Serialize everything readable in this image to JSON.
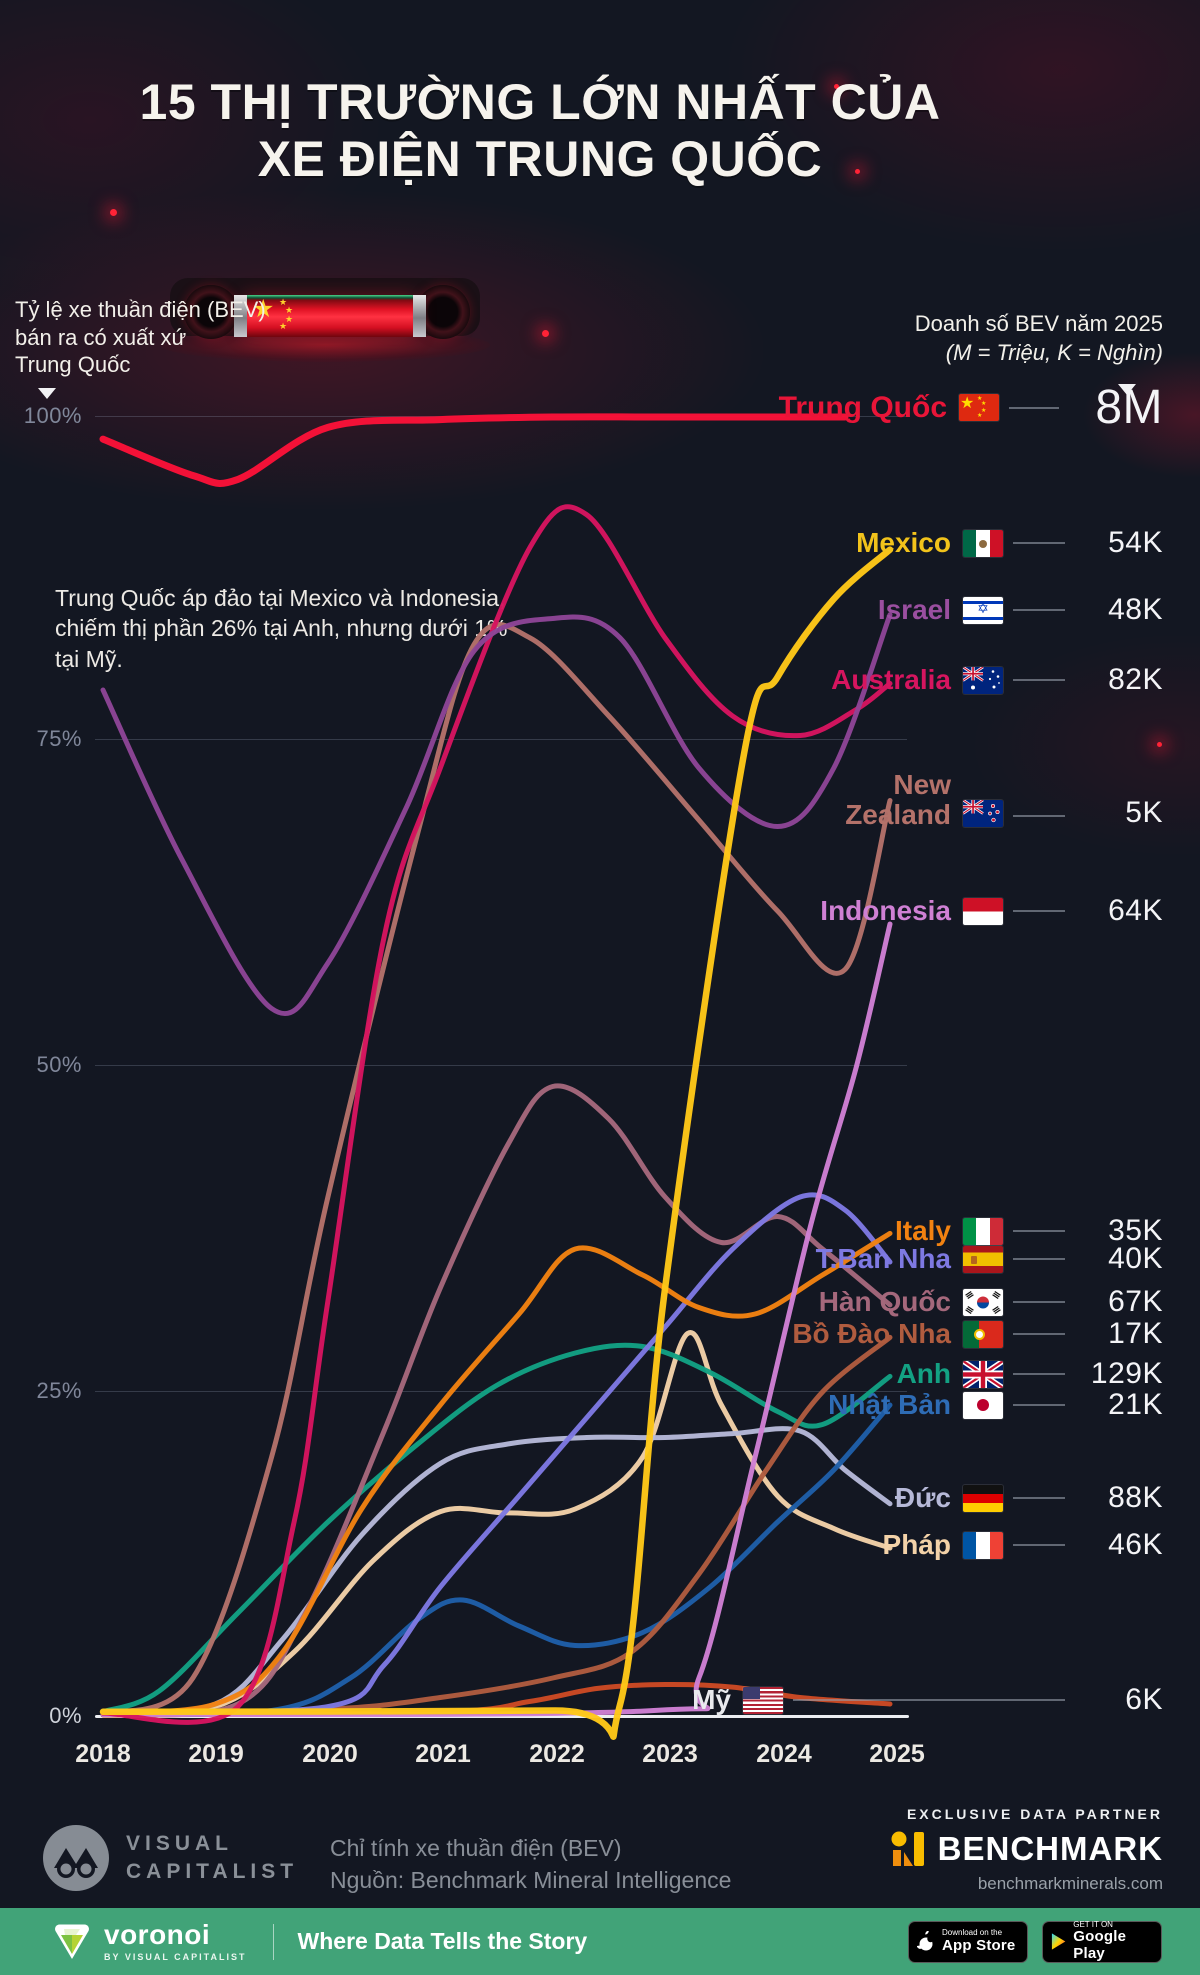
{
  "title": {
    "line1": "15 THỊ TRƯỜNG LỚN NHẤT CỦA",
    "line2": "XE ĐIỆN TRUNG QUỐC"
  },
  "subtitle_left": {
    "line1": "Tỷ lệ xe thuần điện (BEV)",
    "line2": "bán ra có xuất xứ",
    "line3": "Trung Quốc"
  },
  "subtitle_right": {
    "line1": "Doanh số BEV năm 2025",
    "line2": "(M = Triệu, K = Nghìn)"
  },
  "annotation": "Trung Quốc áp đảo tại Mexico và Indonesia, chiếm thị phần 26% tại Anh, nhưng dưới 1% tại Mỹ.",
  "chart_data": {
    "type": "line",
    "x_ticks": [
      "2018",
      "2019",
      "2020",
      "2021",
      "2022",
      "2023",
      "2024",
      "2025"
    ],
    "y_ticks": [
      "100%",
      "75%",
      "50%",
      "25%",
      "0%"
    ],
    "x_range": [
      2018,
      2025
    ],
    "y_range_percent": [
      0,
      100
    ],
    "grid": "horizontal-only",
    "legend_position": "right",
    "series": [
      {
        "label": "Trung Quốc",
        "flag": "china",
        "value_2025": "8M",
        "label_color": "#e81538",
        "line_color": "#fa1238",
        "width": 7,
        "points": [
          [
            2018,
            98.3
          ],
          [
            2018.8,
            95.5
          ],
          [
            2019.2,
            95.2
          ],
          [
            2020,
            99.2
          ],
          [
            2021,
            99.8
          ],
          [
            2022,
            100
          ],
          [
            2023,
            100
          ],
          [
            2024.6,
            100
          ]
        ]
      },
      {
        "label": "Mexico",
        "flag": "mexico",
        "value_2025": "54K",
        "label_color": "#f2c31b",
        "line_color": "#ffc818",
        "width": 6.5,
        "points": [
          [
            2018,
            0.4
          ],
          [
            2022,
            0.5
          ],
          [
            2022.6,
            1
          ],
          [
            2023,
            33
          ],
          [
            2023.7,
            74
          ],
          [
            2024,
            80
          ],
          [
            2024.5,
            86
          ],
          [
            2025,
            89.8
          ]
        ]
      },
      {
        "label": "Israel",
        "flag": "israel",
        "value_2025": "48K",
        "label_color": "#9a4fa0",
        "line_color": "#8d4596",
        "width": 5,
        "points": [
          [
            2018,
            79
          ],
          [
            2018.7,
            66
          ],
          [
            2019.5,
            54.5
          ],
          [
            2020,
            58
          ],
          [
            2020.7,
            70
          ],
          [
            2021.3,
            82
          ],
          [
            2022,
            84.5
          ],
          [
            2022.6,
            83
          ],
          [
            2023.3,
            73
          ],
          [
            2024,
            68.5
          ],
          [
            2024.5,
            73
          ],
          [
            2025,
            84.8
          ]
        ]
      },
      {
        "label": "Australia",
        "flag": "australia",
        "value_2025": "82K",
        "label_color": "#d6155f",
        "line_color": "#d6155f",
        "width": 5,
        "points": [
          [
            2018,
            0.3
          ],
          [
            2019.2,
            0.8
          ],
          [
            2019.7,
            15
          ],
          [
            2020,
            32
          ],
          [
            2020.5,
            60
          ],
          [
            2021,
            73
          ],
          [
            2021.8,
            90
          ],
          [
            2022.3,
            92.5
          ],
          [
            2023,
            83
          ],
          [
            2023.6,
            77
          ],
          [
            2024.2,
            75.5
          ],
          [
            2024.7,
            77.5
          ],
          [
            2025,
            79.5
          ]
        ]
      },
      {
        "label": "New Zealand",
        "label_lines": [
          "New",
          "Zealand"
        ],
        "flag": "new_zealand",
        "value_2025": "5K",
        "label_color": "#b4726a",
        "line_color": "#b4726a",
        "width": 5,
        "points": [
          [
            2018,
            0.3
          ],
          [
            2018.8,
            3
          ],
          [
            2019.5,
            20
          ],
          [
            2020,
            40
          ],
          [
            2020.8,
            68
          ],
          [
            2021.3,
            82.5
          ],
          [
            2021.8,
            83
          ],
          [
            2022.5,
            77
          ],
          [
            2023.3,
            69
          ],
          [
            2024,
            62
          ],
          [
            2024.6,
            57.5
          ],
          [
            2025,
            70.5
          ]
        ]
      },
      {
        "label": "Indonesia",
        "flag": "indonesia",
        "value_2025": "64K",
        "label_color": "#cf80d4",
        "line_color": "#cf80d4",
        "width": 5,
        "points": [
          [
            2018,
            0.2
          ],
          [
            2022.9,
            0.5
          ],
          [
            2023.3,
            3
          ],
          [
            2023.8,
            20
          ],
          [
            2024.3,
            38
          ],
          [
            2024.7,
            50
          ],
          [
            2025,
            61
          ]
        ]
      },
      {
        "label": "Italy",
        "flag": "italy",
        "value_2025": "35K",
        "label_color": "#f28211",
        "line_color": "#f28211",
        "width": 5,
        "points": [
          [
            2018,
            0.3
          ],
          [
            2019,
            1
          ],
          [
            2019.6,
            5
          ],
          [
            2020.3,
            16
          ],
          [
            2021,
            24
          ],
          [
            2021.7,
            31
          ],
          [
            2022.2,
            36
          ],
          [
            2022.8,
            34
          ],
          [
            2023.3,
            31.5
          ],
          [
            2023.8,
            31
          ],
          [
            2024.4,
            34
          ],
          [
            2025,
            37.2
          ]
        ]
      },
      {
        "label": "T.Ban Nha",
        "flag": "spain",
        "value_2025": "40K",
        "label_color": "#7e79e2",
        "line_color": "#7e79e2",
        "width": 5,
        "points": [
          [
            2018,
            0.2
          ],
          [
            2020,
            0.8
          ],
          [
            2020.5,
            4
          ],
          [
            2021,
            10
          ],
          [
            2021.7,
            17
          ],
          [
            2022.4,
            24
          ],
          [
            2023,
            30
          ],
          [
            2023.6,
            36
          ],
          [
            2024.2,
            40
          ],
          [
            2024.6,
            39
          ],
          [
            2025,
            35
          ]
        ]
      },
      {
        "label": "Hàn Quốc",
        "flag": "korea",
        "value_2025": "67K",
        "label_color": "#a5687c",
        "line_color": "#a5687c",
        "width": 5,
        "points": [
          [
            2018,
            0.2
          ],
          [
            2019.2,
            1
          ],
          [
            2019.8,
            8
          ],
          [
            2020.5,
            22
          ],
          [
            2021,
            33
          ],
          [
            2021.6,
            44
          ],
          [
            2022,
            48.5
          ],
          [
            2022.5,
            46
          ],
          [
            2023,
            40
          ],
          [
            2023.5,
            36.5
          ],
          [
            2024,
            38.5
          ],
          [
            2024.4,
            36
          ],
          [
            2025,
            31.7
          ]
        ]
      },
      {
        "label": "Bồ Đào Nha",
        "flag": "portugal",
        "value_2025": "17K",
        "label_color": "#b05c3f",
        "line_color": "#b05c3f",
        "width": 5,
        "points": [
          [
            2018,
            0.2
          ],
          [
            2020,
            0.6
          ],
          [
            2021,
            1.5
          ],
          [
            2022,
            3
          ],
          [
            2022.7,
            5
          ],
          [
            2023.3,
            11
          ],
          [
            2023.9,
            19
          ],
          [
            2024.4,
            25
          ],
          [
            2025,
            29.2
          ]
        ]
      },
      {
        "label": "Anh",
        "flag": "uk",
        "value_2025": "129K",
        "label_color": "#13a183",
        "line_color": "#13a183",
        "width": 5,
        "points": [
          [
            2018,
            0.4
          ],
          [
            2018.5,
            2
          ],
          [
            2019.2,
            8
          ],
          [
            2020,
            15
          ],
          [
            2020.8,
            21
          ],
          [
            2021.5,
            25.5
          ],
          [
            2022.2,
            28
          ],
          [
            2022.8,
            28.5
          ],
          [
            2023.4,
            26.5
          ],
          [
            2024,
            23.5
          ],
          [
            2024.4,
            22.5
          ],
          [
            2025,
            26.2
          ]
        ]
      },
      {
        "label": "Nhật Bản",
        "flag": "japan",
        "value_2025": "21K",
        "label_color": "#2e6cb5",
        "line_color": "#1f5fa8",
        "width": 5,
        "points": [
          [
            2018,
            0.2
          ],
          [
            2019.5,
            0.5
          ],
          [
            2020.2,
            3
          ],
          [
            2020.8,
            7.5
          ],
          [
            2021.2,
            9
          ],
          [
            2021.7,
            7
          ],
          [
            2022.2,
            5.5
          ],
          [
            2022.8,
            6.5
          ],
          [
            2023.4,
            10
          ],
          [
            2024,
            15
          ],
          [
            2024.5,
            19
          ],
          [
            2025,
            24
          ]
        ]
      },
      {
        "label": "Đức",
        "flag": "germany",
        "value_2025": "88K",
        "label_color": "#b6b9d8",
        "line_color": "#b6b9d8",
        "width": 5,
        "points": [
          [
            2018,
            0.3
          ],
          [
            2019,
            1
          ],
          [
            2019.6,
            6
          ],
          [
            2020.3,
            14
          ],
          [
            2021,
            19.5
          ],
          [
            2021.6,
            21
          ],
          [
            2022.3,
            21.5
          ],
          [
            2023,
            21.5
          ],
          [
            2023.6,
            21.8
          ],
          [
            2024.2,
            22
          ],
          [
            2024.6,
            19
          ],
          [
            2025,
            16.4
          ]
        ]
      },
      {
        "label": "Pháp",
        "flag": "france",
        "value_2025": "46K",
        "label_color": "#f3d2a8",
        "line_color": "#f3d2a8",
        "width": 5,
        "points": [
          [
            2018,
            0.3
          ],
          [
            2019,
            0.8
          ],
          [
            2019.7,
            5
          ],
          [
            2020.4,
            12
          ],
          [
            2021,
            15.8
          ],
          [
            2021.6,
            15.7
          ],
          [
            2022.2,
            16
          ],
          [
            2022.8,
            20
          ],
          [
            2023.2,
            29.5
          ],
          [
            2023.5,
            24
          ],
          [
            2024,
            17
          ],
          [
            2024.5,
            14.5
          ],
          [
            2025,
            13
          ]
        ]
      },
      {
        "label": "Mỹ",
        "flag": "usa",
        "value_2025": "6K",
        "label_color": "#e9eaee",
        "line_color": "#cc4a24",
        "width": 5,
        "points": [
          [
            2018,
            0.15
          ],
          [
            2021,
            0.4
          ],
          [
            2021.8,
            1.2
          ],
          [
            2022.4,
            2.2
          ],
          [
            2023,
            2.5
          ],
          [
            2023.6,
            2.3
          ],
          [
            2024.2,
            1.5
          ],
          [
            2025,
            1
          ]
        ]
      }
    ]
  },
  "footer": {
    "note": "Chỉ tính xe thuần điện (BEV)",
    "source": "Nguồn: Benchmark Mineral Intelligence",
    "vc_line1": "VISUAL",
    "vc_line2": "CAPITALIST",
    "partner_label": "EXCLUSIVE DATA PARTNER",
    "partner_name": "BENCHMARK",
    "partner_url": "benchmarkminerals.com",
    "voronoi_name": "voronoi",
    "voronoi_sub": "BY VISUAL CAPITALIST",
    "tagline": "Where Data Tells the Story",
    "badge_appstore": {
      "line1": "Download on the",
      "line2": "App Store"
    },
    "badge_gplay": {
      "line1": "GET IT ON",
      "line2": "Google Play"
    }
  },
  "colors": {
    "background": "#131722",
    "accent_red": "#fa1238",
    "footer_green": "#41a378",
    "gridline": "#8a93a8",
    "value_text": "#f4f4f7"
  }
}
